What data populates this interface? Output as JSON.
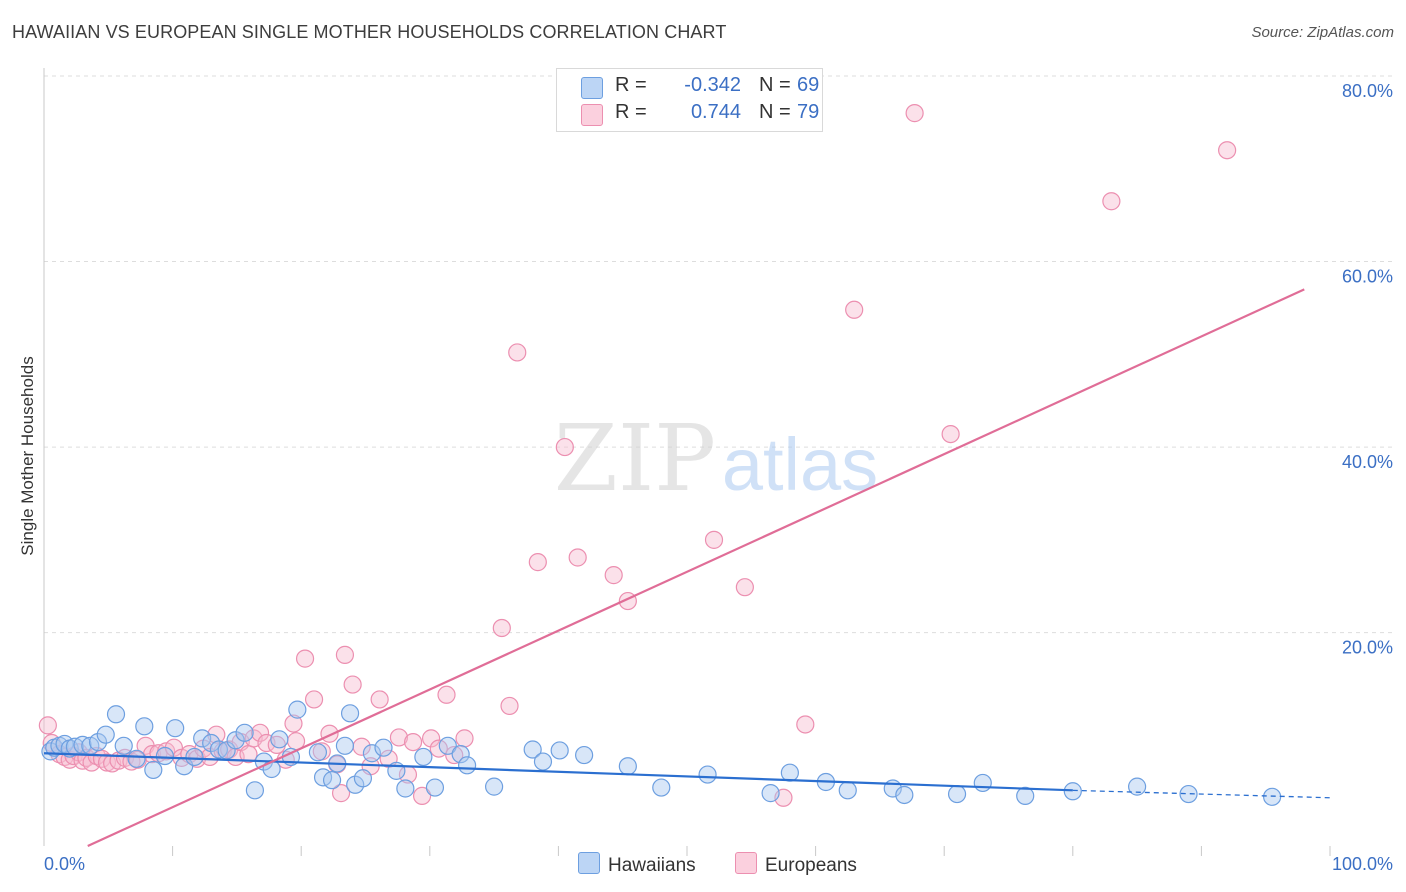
{
  "title": "HAWAIIAN VS EUROPEAN SINGLE MOTHER HOUSEHOLDS CORRELATION CHART",
  "source": "Source: ZipAtlas.com",
  "watermark": {
    "zip": "ZIP",
    "atlas": "atlas"
  },
  "legend": {
    "rows": [
      {
        "r_label": "R =",
        "r_value": "-0.342",
        "n_label": "N =",
        "n_value": "69"
      },
      {
        "r_label": "R =",
        "r_value": "0.744",
        "n_label": "N =",
        "n_value": "79"
      }
    ]
  },
  "bottom_legend": {
    "hawaiians": "Hawaiians",
    "europeans": "Europeans"
  },
  "colors": {
    "hawaiians_fill": "#a9c8f0",
    "hawaiians_stroke": "#6d9fe0",
    "hawaiians_line": "#2b6fd0",
    "europeans_fill": "#f7bcd0",
    "europeans_stroke": "#ec8fb0",
    "europeans_line": "#e06d97",
    "tick_label": "#3b6fc4",
    "grid": "#dddddd"
  },
  "chart_data": {
    "type": "scatter",
    "title": "HAWAIIAN VS EUROPEAN SINGLE MOTHER HOUSEHOLDS CORRELATION CHART",
    "xlabel": "",
    "ylabel": "Single Mother Households",
    "xlim": [
      0,
      100
    ],
    "ylim": [
      -3,
      80
    ],
    "x_tick_labels": [
      {
        "value": 0,
        "label": "0.0%"
      },
      {
        "value": 100,
        "label": "100.0%"
      }
    ],
    "y_ticks": [
      {
        "value": 20,
        "label": "20.0%"
      },
      {
        "value": 40,
        "label": "40.0%"
      },
      {
        "value": 60,
        "label": "60.0%"
      },
      {
        "value": 80,
        "label": "80.0%"
      }
    ],
    "series": [
      {
        "name": "Hawaiians",
        "r": -0.342,
        "n": 69,
        "trend": {
          "x0": 0,
          "y0": 7.0,
          "x1": 80,
          "y1": 3.0,
          "dashed_to_x": 100,
          "dashed_y": 2.2
        },
        "points": [
          [
            0.5,
            7.2
          ],
          [
            0.8,
            7.6
          ],
          [
            1.2,
            7.8
          ],
          [
            1.6,
            8.0
          ],
          [
            2.0,
            7.5
          ],
          [
            2.4,
            7.7
          ],
          [
            3.0,
            7.9
          ],
          [
            3.6,
            7.8
          ],
          [
            4.2,
            8.2
          ],
          [
            4.8,
            9.0
          ],
          [
            5.6,
            11.2
          ],
          [
            6.2,
            7.8
          ],
          [
            7.2,
            6.4
          ],
          [
            7.8,
            9.9
          ],
          [
            8.5,
            5.2
          ],
          [
            9.4,
            6.7
          ],
          [
            10.2,
            9.7
          ],
          [
            10.9,
            5.6
          ],
          [
            11.7,
            6.6
          ],
          [
            12.3,
            8.6
          ],
          [
            13.0,
            8.1
          ],
          [
            13.6,
            7.4
          ],
          [
            14.2,
            7.3
          ],
          [
            14.9,
            8.4
          ],
          [
            15.6,
            9.2
          ],
          [
            16.4,
            3.0
          ],
          [
            17.1,
            6.1
          ],
          [
            17.7,
            5.3
          ],
          [
            18.3,
            8.5
          ],
          [
            19.2,
            6.6
          ],
          [
            19.7,
            11.7
          ],
          [
            21.3,
            7.1
          ],
          [
            21.7,
            4.4
          ],
          [
            22.4,
            4.1
          ],
          [
            22.8,
            5.9
          ],
          [
            23.4,
            7.8
          ],
          [
            23.8,
            11.3
          ],
          [
            24.2,
            3.6
          ],
          [
            24.8,
            4.3
          ],
          [
            25.5,
            7.0
          ],
          [
            26.4,
            7.6
          ],
          [
            27.4,
            5.1
          ],
          [
            28.1,
            3.2
          ],
          [
            29.5,
            6.6
          ],
          [
            30.4,
            3.3
          ],
          [
            31.4,
            7.8
          ],
          [
            32.4,
            6.9
          ],
          [
            32.9,
            5.7
          ],
          [
            35.0,
            3.4
          ],
          [
            38.0,
            7.4
          ],
          [
            38.8,
            6.1
          ],
          [
            40.1,
            7.3
          ],
          [
            42.0,
            6.8
          ],
          [
            45.4,
            5.6
          ],
          [
            48.0,
            3.3
          ],
          [
            51.6,
            4.7
          ],
          [
            56.5,
            2.7
          ],
          [
            60.8,
            3.9
          ],
          [
            66.0,
            3.2
          ],
          [
            66.9,
            2.5
          ],
          [
            71.0,
            2.6
          ],
          [
            73.0,
            3.8
          ],
          [
            76.3,
            2.4
          ],
          [
            80.0,
            2.9
          ],
          [
            85.0,
            3.4
          ],
          [
            89.0,
            2.6
          ],
          [
            95.5,
            2.3
          ],
          [
            58.0,
            4.9
          ],
          [
            62.5,
            3.0
          ]
        ]
      },
      {
        "name": "Europeans",
        "r": 0.744,
        "n": 79,
        "trend": {
          "x0": 3.4,
          "y0": -3.0,
          "x1": 98.0,
          "y1": 57.0
        },
        "points": [
          [
            0.3,
            10.0
          ],
          [
            0.6,
            8.1
          ],
          [
            1.2,
            6.9
          ],
          [
            1.6,
            6.6
          ],
          [
            2.0,
            6.3
          ],
          [
            2.3,
            6.7
          ],
          [
            2.7,
            7.1
          ],
          [
            3.0,
            6.2
          ],
          [
            3.3,
            6.5
          ],
          [
            3.7,
            6.0
          ],
          [
            4.1,
            6.7
          ],
          [
            4.5,
            6.4
          ],
          [
            4.9,
            6.0
          ],
          [
            5.3,
            5.9
          ],
          [
            5.8,
            6.2
          ],
          [
            6.3,
            6.5
          ],
          [
            6.8,
            6.1
          ],
          [
            7.3,
            6.3
          ],
          [
            7.9,
            7.8
          ],
          [
            8.4,
            6.9
          ],
          [
            8.9,
            7.0
          ],
          [
            9.5,
            7.2
          ],
          [
            10.1,
            7.6
          ],
          [
            10.7,
            6.5
          ],
          [
            11.3,
            6.9
          ],
          [
            11.9,
            6.4
          ],
          [
            12.4,
            7.5
          ],
          [
            12.9,
            6.6
          ],
          [
            13.4,
            9.0
          ],
          [
            13.9,
            7.2
          ],
          [
            14.4,
            7.4
          ],
          [
            14.9,
            6.6
          ],
          [
            15.3,
            8.2
          ],
          [
            15.9,
            6.9
          ],
          [
            16.3,
            8.6
          ],
          [
            16.8,
            9.2
          ],
          [
            17.3,
            8.1
          ],
          [
            18.1,
            7.9
          ],
          [
            18.8,
            6.3
          ],
          [
            19.4,
            10.2
          ],
          [
            19.6,
            8.3
          ],
          [
            20.3,
            17.2
          ],
          [
            21.0,
            12.8
          ],
          [
            21.6,
            7.2
          ],
          [
            22.2,
            9.1
          ],
          [
            22.8,
            5.8
          ],
          [
            23.1,
            2.7
          ],
          [
            23.4,
            17.6
          ],
          [
            24.0,
            14.4
          ],
          [
            24.7,
            7.7
          ],
          [
            25.4,
            5.6
          ],
          [
            26.1,
            12.8
          ],
          [
            26.8,
            6.4
          ],
          [
            27.6,
            8.7
          ],
          [
            28.3,
            4.7
          ],
          [
            28.7,
            8.2
          ],
          [
            29.4,
            2.4
          ],
          [
            30.1,
            8.6
          ],
          [
            30.7,
            7.5
          ],
          [
            31.3,
            13.3
          ],
          [
            31.9,
            6.8
          ],
          [
            32.7,
            8.6
          ],
          [
            35.6,
            20.5
          ],
          [
            36.2,
            12.1
          ],
          [
            36.8,
            50.2
          ],
          [
            38.4,
            27.6
          ],
          [
            40.5,
            40.0
          ],
          [
            41.5,
            28.1
          ],
          [
            44.3,
            26.2
          ],
          [
            45.4,
            23.4
          ],
          [
            52.1,
            30.0
          ],
          [
            54.5,
            24.9
          ],
          [
            57.5,
            2.2
          ],
          [
            59.2,
            10.1
          ],
          [
            63.0,
            54.8
          ],
          [
            67.7,
            76.0
          ],
          [
            70.5,
            41.4
          ],
          [
            83.0,
            66.5
          ],
          [
            92.0,
            72.0
          ]
        ]
      }
    ]
  }
}
